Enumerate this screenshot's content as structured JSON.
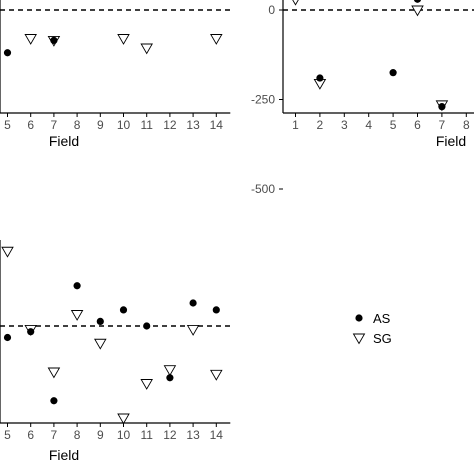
{
  "chart_data": [
    {
      "type": "scatter",
      "panel": "top-left",
      "xlabel": "Field",
      "ylabel": "",
      "x_ticks": [
        "5",
        "6",
        "7",
        "8",
        "9",
        "10",
        "11",
        "12",
        "13",
        "14"
      ],
      "y_ticks": [],
      "reference_line": 0,
      "series": [
        {
          "name": "AS",
          "marker": "filled-circle",
          "points": [
            [
              5,
              -45
            ],
            [
              6,
              17
            ],
            [
              7,
              -32
            ]
          ]
        },
        {
          "name": "SG",
          "marker": "open-triangle-down",
          "points": [
            [
              6,
              -30
            ],
            [
              7,
              -32
            ],
            [
              9,
              20
            ],
            [
              10,
              -30
            ],
            [
              11,
              -40
            ],
            [
              13,
              70
            ],
            [
              14,
              -30
            ]
          ]
        }
      ]
    },
    {
      "type": "scatter",
      "panel": "top-right",
      "xlabel": "Field",
      "ylabel": "",
      "x_ticks": [
        "1",
        "2",
        "3",
        "4",
        "5",
        "6",
        "7",
        "8"
      ],
      "y_ticks": [
        "0",
        "-250",
        "-500"
      ],
      "ylim": [
        -550,
        50
      ],
      "reference_line": 0,
      "series": [
        {
          "name": "AS",
          "marker": "filled-circle",
          "points": [
            [
              2,
              -190
            ],
            [
              5,
              -175
            ],
            [
              6,
              30
            ],
            [
              7,
              -270
            ]
          ]
        },
        {
          "name": "SG",
          "marker": "open-triangle-down",
          "points": [
            [
              1,
              30
            ],
            [
              2,
              -205
            ],
            [
              6,
              0
            ],
            [
              7,
              -265
            ]
          ]
        }
      ]
    },
    {
      "type": "scatter",
      "panel": "bottom-left",
      "xlabel": "Field",
      "ylabel": "",
      "x_ticks": [
        "5",
        "6",
        "7",
        "8",
        "9",
        "10",
        "11",
        "12",
        "13",
        "14"
      ],
      "y_ticks": [],
      "reference_line": 0,
      "series": [
        {
          "name": "AS",
          "marker": "filled-circle",
          "points": [
            [
              5,
              -10
            ],
            [
              6,
              -5
            ],
            [
              7,
              -65
            ],
            [
              8,
              35
            ],
            [
              9,
              4
            ],
            [
              10,
              14
            ],
            [
              11,
              0
            ],
            [
              12,
              -45
            ],
            [
              13,
              20
            ],
            [
              14,
              14
            ]
          ]
        },
        {
          "name": "SG",
          "marker": "open-triangle-down",
          "points": [
            [
              5,
              65
            ],
            [
              6,
              -3
            ],
            [
              7,
              -40
            ],
            [
              8,
              10
            ],
            [
              9,
              -15
            ],
            [
              10,
              -80
            ],
            [
              11,
              -50
            ],
            [
              12,
              -38
            ],
            [
              13,
              -3
            ],
            [
              14,
              -42
            ]
          ]
        }
      ]
    }
  ],
  "legend": {
    "position": "right",
    "items": [
      {
        "label": "AS",
        "marker": "filled-circle"
      },
      {
        "label": "SG",
        "marker": "open-triangle-down"
      }
    ]
  }
}
